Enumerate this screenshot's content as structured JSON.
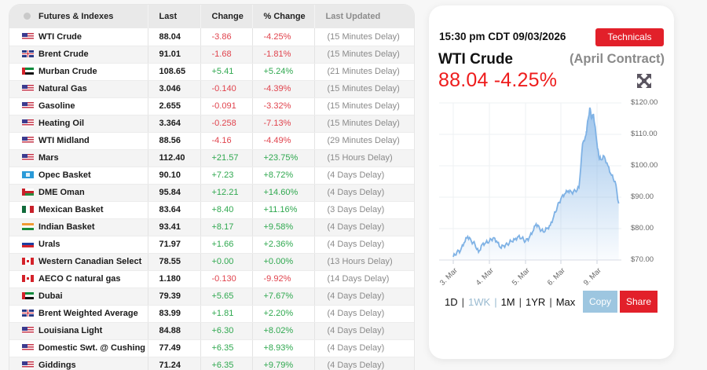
{
  "table": {
    "headers": {
      "name": "Futures & Indexes",
      "last": "Last",
      "change": "Change",
      "pct": "% Change",
      "updated": "Last Updated"
    },
    "rows": [
      {
        "flag": "us",
        "name": "WTI Crude",
        "last": "88.04",
        "change": "-3.86",
        "pct": "-4.25%",
        "updated": "(15 Minutes Delay)",
        "dir": "neg"
      },
      {
        "flag": "gb",
        "name": "Brent Crude",
        "last": "91.01",
        "change": "-1.68",
        "pct": "-1.81%",
        "updated": "(15 Minutes Delay)",
        "dir": "neg"
      },
      {
        "flag": "ae",
        "name": "Murban Crude",
        "last": "108.65",
        "change": "+5.41",
        "pct": "+5.24%",
        "updated": "(21 Minutes Delay)",
        "dir": "pos"
      },
      {
        "flag": "us",
        "name": "Natural Gas",
        "last": "3.046",
        "change": "-0.140",
        "pct": "-4.39%",
        "updated": "(15 Minutes Delay)",
        "dir": "neg"
      },
      {
        "flag": "us",
        "name": "Gasoline",
        "last": "2.655",
        "change": "-0.091",
        "pct": "-3.32%",
        "updated": "(15 Minutes Delay)",
        "dir": "neg"
      },
      {
        "flag": "us",
        "name": "Heating Oil",
        "last": "3.364",
        "change": "-0.258",
        "pct": "-7.13%",
        "updated": "(15 Minutes Delay)",
        "dir": "neg"
      },
      {
        "flag": "us",
        "name": "WTI Midland",
        "last": "88.56",
        "change": "-4.16",
        "pct": "-4.49%",
        "updated": "(29 Minutes Delay)",
        "dir": "neg"
      },
      {
        "flag": "us",
        "name": "Mars",
        "last": "112.40",
        "change": "+21.57",
        "pct": "+23.75%",
        "updated": "(15 Hours Delay)",
        "dir": "pos"
      },
      {
        "flag": "opec",
        "name": "Opec Basket",
        "last": "90.10",
        "change": "+7.23",
        "pct": "+8.72%",
        "updated": "(4 Days Delay)",
        "dir": "pos"
      },
      {
        "flag": "om",
        "name": "DME Oman",
        "last": "95.84",
        "change": "+12.21",
        "pct": "+14.60%",
        "updated": "(4 Days Delay)",
        "dir": "pos"
      },
      {
        "flag": "mx",
        "name": "Mexican Basket",
        "last": "83.64",
        "change": "+8.40",
        "pct": "+11.16%",
        "updated": "(3 Days Delay)",
        "dir": "pos"
      },
      {
        "flag": "in",
        "name": "Indian Basket",
        "last": "93.41",
        "change": "+8.17",
        "pct": "+9.58%",
        "updated": "(4 Days Delay)",
        "dir": "pos"
      },
      {
        "flag": "ru",
        "name": "Urals",
        "last": "71.97",
        "change": "+1.66",
        "pct": "+2.36%",
        "updated": "(4 Days Delay)",
        "dir": "pos"
      },
      {
        "flag": "ca",
        "name": "Western Canadian Select",
        "last": "78.55",
        "change": "+0.00",
        "pct": "+0.00%",
        "updated": "(13 Hours Delay)",
        "dir": "pos"
      },
      {
        "flag": "ca",
        "name": "AECO C natural gas",
        "last": "1.180",
        "change": "-0.130",
        "pct": "-9.92%",
        "updated": "(14 Days Delay)",
        "dir": "neg"
      },
      {
        "flag": "ae",
        "name": "Dubai",
        "last": "79.39",
        "change": "+5.65",
        "pct": "+7.67%",
        "updated": "(4 Days Delay)",
        "dir": "pos"
      },
      {
        "flag": "gb",
        "name": "Brent Weighted Average",
        "last": "83.99",
        "change": "+1.81",
        "pct": "+2.20%",
        "updated": "(4 Days Delay)",
        "dir": "pos"
      },
      {
        "flag": "us",
        "name": "Louisiana Light",
        "last": "84.88",
        "change": "+6.30",
        "pct": "+8.02%",
        "updated": "(4 Days Delay)",
        "dir": "pos"
      },
      {
        "flag": "us",
        "name": "Domestic Swt. @ Cushing",
        "last": "77.49",
        "change": "+6.35",
        "pct": "+8.93%",
        "updated": "(4 Days Delay)",
        "dir": "pos"
      },
      {
        "flag": "us",
        "name": "Giddings",
        "last": "71.24",
        "change": "+6.35",
        "pct": "+9.79%",
        "updated": "(4 Days Delay)",
        "dir": "pos"
      }
    ]
  },
  "card": {
    "timestamp": "15:30 pm CDT 09/03/2026",
    "technicals_label": "Technicals",
    "instrument": "WTI Crude",
    "contract": "(April Contract)",
    "quote": "88.04 -4.25%",
    "fullscreen_icon": "expand-arrows-icon",
    "ranges": [
      "1D",
      "1WK",
      "1M",
      "1YR",
      "Max"
    ],
    "active_range": "1WK",
    "copy_label": "Copy",
    "share_label": "Share"
  },
  "colors": {
    "negative": "#e0434d",
    "positive": "#2fa84f",
    "accent_red": "#e2202a",
    "quote_red": "#ee1c1c",
    "copy_blue": "#9dc6e0",
    "line_blue": "#7fb2e5"
  },
  "chart_data": {
    "type": "area",
    "title": "WTI Crude (April Contract)",
    "xlabel": "",
    "ylabel": "",
    "categories": [
      "3. Mar",
      "4. Mar",
      "5. Mar",
      "6. Mar",
      "9. Mar"
    ],
    "y_ticks": [
      "$70.00",
      "$80.00",
      "$90.00",
      "$100.00",
      "$110.00",
      "$120.00"
    ],
    "ylim": [
      70,
      120
    ],
    "grid": true,
    "series": [
      {
        "name": "WTI Crude",
        "x": [
          0,
          0.1,
          0.2,
          0.3,
          0.4,
          0.5,
          0.6,
          0.7,
          0.8,
          0.9,
          1.0,
          1.1,
          1.2,
          1.3,
          1.4,
          1.5,
          1.6,
          1.7,
          1.8,
          1.9,
          2.0,
          2.1,
          2.2,
          2.3,
          2.4,
          2.5,
          2.6,
          2.7,
          2.8,
          2.9,
          3.0,
          3.1,
          3.2,
          3.3,
          3.4,
          3.5,
          3.6,
          3.7,
          3.72,
          3.8,
          3.85,
          3.9,
          4.0,
          4.05,
          4.1,
          4.2,
          4.3,
          4.4,
          4.5,
          4.6
        ],
        "values": [
          71.0,
          72.5,
          73.0,
          75.5,
          77.5,
          76.0,
          75.0,
          72.5,
          75.0,
          75.5,
          76.0,
          77.0,
          76.0,
          74.0,
          74.5,
          75.0,
          76.0,
          76.5,
          77.5,
          77.0,
          76.0,
          77.0,
          79.0,
          81.5,
          80.0,
          79.0,
          80.0,
          81.0,
          84.0,
          87.0,
          89.5,
          91.0,
          92.0,
          91.5,
          92.0,
          93.0,
          107.0,
          110.0,
          112.0,
          118.5,
          115.0,
          116.5,
          107.0,
          103.0,
          102.0,
          103.0,
          100.0,
          97.0,
          95.0,
          88.0
        ]
      }
    ]
  }
}
